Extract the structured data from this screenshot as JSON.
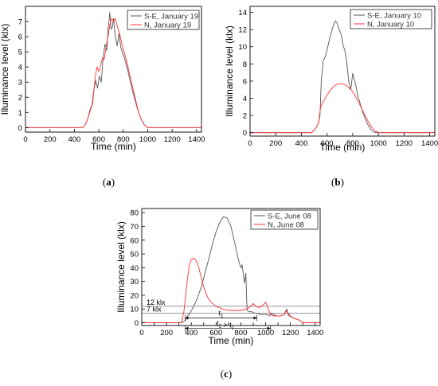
{
  "colors": {
    "series_se": "#555555",
    "series_n": "#ff3333",
    "ref_line": "#888888"
  },
  "chart_data": [
    {
      "type": "line",
      "panel_label": "(a)",
      "xlabel": "Time (min)",
      "ylabel": "Illuminance level (klx)",
      "xlim": [
        0,
        1440
      ],
      "ylim": [
        -0.3,
        8
      ],
      "xticks": [
        0,
        200,
        400,
        600,
        800,
        1000,
        1200,
        1400
      ],
      "yticks": [
        0,
        1,
        2,
        3,
        4,
        5,
        6,
        7
      ],
      "legend_position": "top-right",
      "series": [
        {
          "name": "S-E, January 19",
          "x": [
            0,
            470,
            490,
            510,
            530,
            545,
            560,
            575,
            590,
            605,
            620,
            635,
            650,
            665,
            675,
            690,
            700,
            710,
            720,
            735,
            750,
            765,
            780,
            795,
            810,
            830,
            850,
            870,
            890,
            910,
            930,
            950,
            970,
            990,
            1005,
            1440
          ],
          "y": [
            0,
            0,
            0.2,
            0.6,
            1.2,
            1.5,
            2.5,
            3.1,
            2.6,
            3.4,
            3.0,
            4.6,
            5.5,
            5.1,
            6.4,
            7.6,
            6.5,
            6.6,
            7.2,
            6.0,
            5.4,
            6.2,
            5.3,
            4.9,
            4.6,
            4.0,
            3.3,
            2.6,
            2.0,
            1.4,
            0.9,
            0.5,
            0.2,
            0.05,
            0,
            0
          ]
        },
        {
          "name": "N, January 19",
          "x": [
            0,
            470,
            490,
            510,
            530,
            550,
            570,
            585,
            600,
            615,
            630,
            645,
            660,
            675,
            690,
            705,
            720,
            735,
            750,
            770,
            790,
            810,
            830,
            850,
            870,
            890,
            910,
            930,
            950,
            970,
            990,
            1005,
            1440
          ],
          "y": [
            0,
            0,
            0.2,
            0.6,
            1.1,
            1.6,
            3.3,
            4.0,
            3.7,
            4.1,
            4.6,
            4.5,
            5.4,
            6.0,
            6.8,
            7.2,
            7.0,
            7.2,
            6.7,
            6.2,
            5.5,
            4.9,
            4.3,
            3.6,
            2.9,
            2.2,
            1.5,
            0.9,
            0.5,
            0.2,
            0.05,
            0,
            0
          ]
        }
      ]
    },
    {
      "type": "line",
      "panel_label": "(b)",
      "xlabel": "Time (min)",
      "ylabel": "Illuminance level (klx)",
      "xlim": [
        0,
        1440
      ],
      "ylim": [
        -0.4,
        14.7
      ],
      "xticks": [
        0,
        200,
        400,
        600,
        800,
        1000,
        1200,
        1400
      ],
      "yticks": [
        0,
        2,
        4,
        6,
        8,
        10,
        12,
        14
      ],
      "legend_position": "top-right",
      "series": [
        {
          "name": "S-E, January 10",
          "x": [
            0,
            480,
            500,
            520,
            535,
            545,
            555,
            570,
            590,
            610,
            630,
            650,
            665,
            680,
            695,
            710,
            725,
            740,
            755,
            770,
            785,
            800,
            820,
            840,
            860,
            880,
            900,
            920,
            940,
            960,
            980,
            1440
          ],
          "y": [
            0,
            0,
            0.3,
            0.7,
            1.2,
            2.0,
            6.0,
            8.3,
            9.0,
            10.3,
            11.5,
            12.5,
            13.0,
            12.7,
            12.0,
            11.4,
            10.2,
            9.5,
            8.0,
            5.8,
            5.0,
            6.9,
            5.8,
            4.3,
            3.3,
            2.3,
            1.5,
            0.9,
            0.4,
            0.1,
            0,
            0
          ]
        },
        {
          "name": "N, January 10",
          "x": [
            0,
            480,
            500,
            520,
            535,
            550,
            570,
            600,
            630,
            660,
            690,
            720,
            750,
            780,
            800,
            830,
            860,
            890,
            920,
            950,
            975,
            1000,
            1440
          ],
          "y": [
            0,
            0,
            0.3,
            0.7,
            1.2,
            3.0,
            3.6,
            4.4,
            5.0,
            5.5,
            5.7,
            5.7,
            5.5,
            5.1,
            4.8,
            4.0,
            3.1,
            2.2,
            1.3,
            0.6,
            0.2,
            0,
            0
          ]
        }
      ]
    },
    {
      "type": "line",
      "panel_label": "(c)",
      "xlabel": "Time (min)",
      "ylabel": "Illuminance level (klx)",
      "xlim": [
        0,
        1440
      ],
      "ylim": [
        -2,
        83
      ],
      "xticks": [
        0,
        100,
        200,
        300,
        400,
        500,
        600,
        700,
        800,
        900,
        1000,
        1100,
        1200,
        1300,
        1400
      ],
      "yticks": [
        0,
        10,
        20,
        30,
        40,
        50,
        60,
        70,
        80
      ],
      "legend_position": "top-right",
      "reference_lines": [
        {
          "y": 12,
          "label": "12 klx"
        },
        {
          "y": 7,
          "label": "7 klx"
        }
      ],
      "intervals": [
        {
          "label": "t",
          "sub": "1",
          "x_start": 350,
          "x_end": 930,
          "y": 3.5
        },
        {
          "label": "t",
          "sub": "2",
          "mid": " > ",
          "label2": "t",
          "sub2": "1",
          "x_start": 350,
          "x_end": 1040,
          "y": -4
        }
      ],
      "series": [
        {
          "name": "S-E, June 08",
          "x": [
            0,
            320,
            340,
            355,
            370,
            390,
            420,
            450,
            480,
            510,
            540,
            570,
            600,
            630,
            660,
            690,
            720,
            750,
            780,
            800,
            810,
            820,
            830,
            840,
            850,
            870,
            890,
            910,
            930,
            960,
            990,
            1010,
            1030,
            1045,
            1060,
            1090,
            1120,
            1150,
            1170,
            1180,
            1190,
            1210,
            1240,
            1270,
            1300,
            1440
          ],
          "y": [
            0,
            0,
            1,
            2,
            5,
            7,
            12,
            18,
            26,
            36,
            46,
            57,
            66,
            73,
            77,
            76,
            70,
            58,
            46,
            40,
            42,
            35,
            29,
            36,
            9,
            8,
            8,
            7,
            7,
            6,
            6,
            6,
            5,
            7,
            6,
            5,
            5,
            6,
            10,
            7,
            6,
            4,
            3,
            2,
            0,
            0
          ]
        },
        {
          "name": "N, June 08",
          "x": [
            0,
            320,
            340,
            355,
            370,
            385,
            400,
            420,
            440,
            460,
            480,
            500,
            520,
            540,
            570,
            600,
            650,
            700,
            750,
            800,
            850,
            880,
            900,
            920,
            950,
            980,
            1000,
            1020,
            1040,
            1060,
            1090,
            1120,
            1150,
            1170,
            1180,
            1190,
            1210,
            1240,
            1270,
            1300,
            1440
          ],
          "y": [
            0,
            0,
            8,
            20,
            33,
            42,
            46,
            47,
            45,
            40,
            33,
            26,
            21,
            17,
            14,
            12,
            10,
            9,
            9,
            9,
            10,
            12,
            14,
            12,
            11,
            13,
            15,
            10,
            6,
            5,
            5,
            5,
            6,
            9,
            6,
            5,
            4,
            3,
            2,
            0,
            0
          ]
        }
      ]
    }
  ]
}
